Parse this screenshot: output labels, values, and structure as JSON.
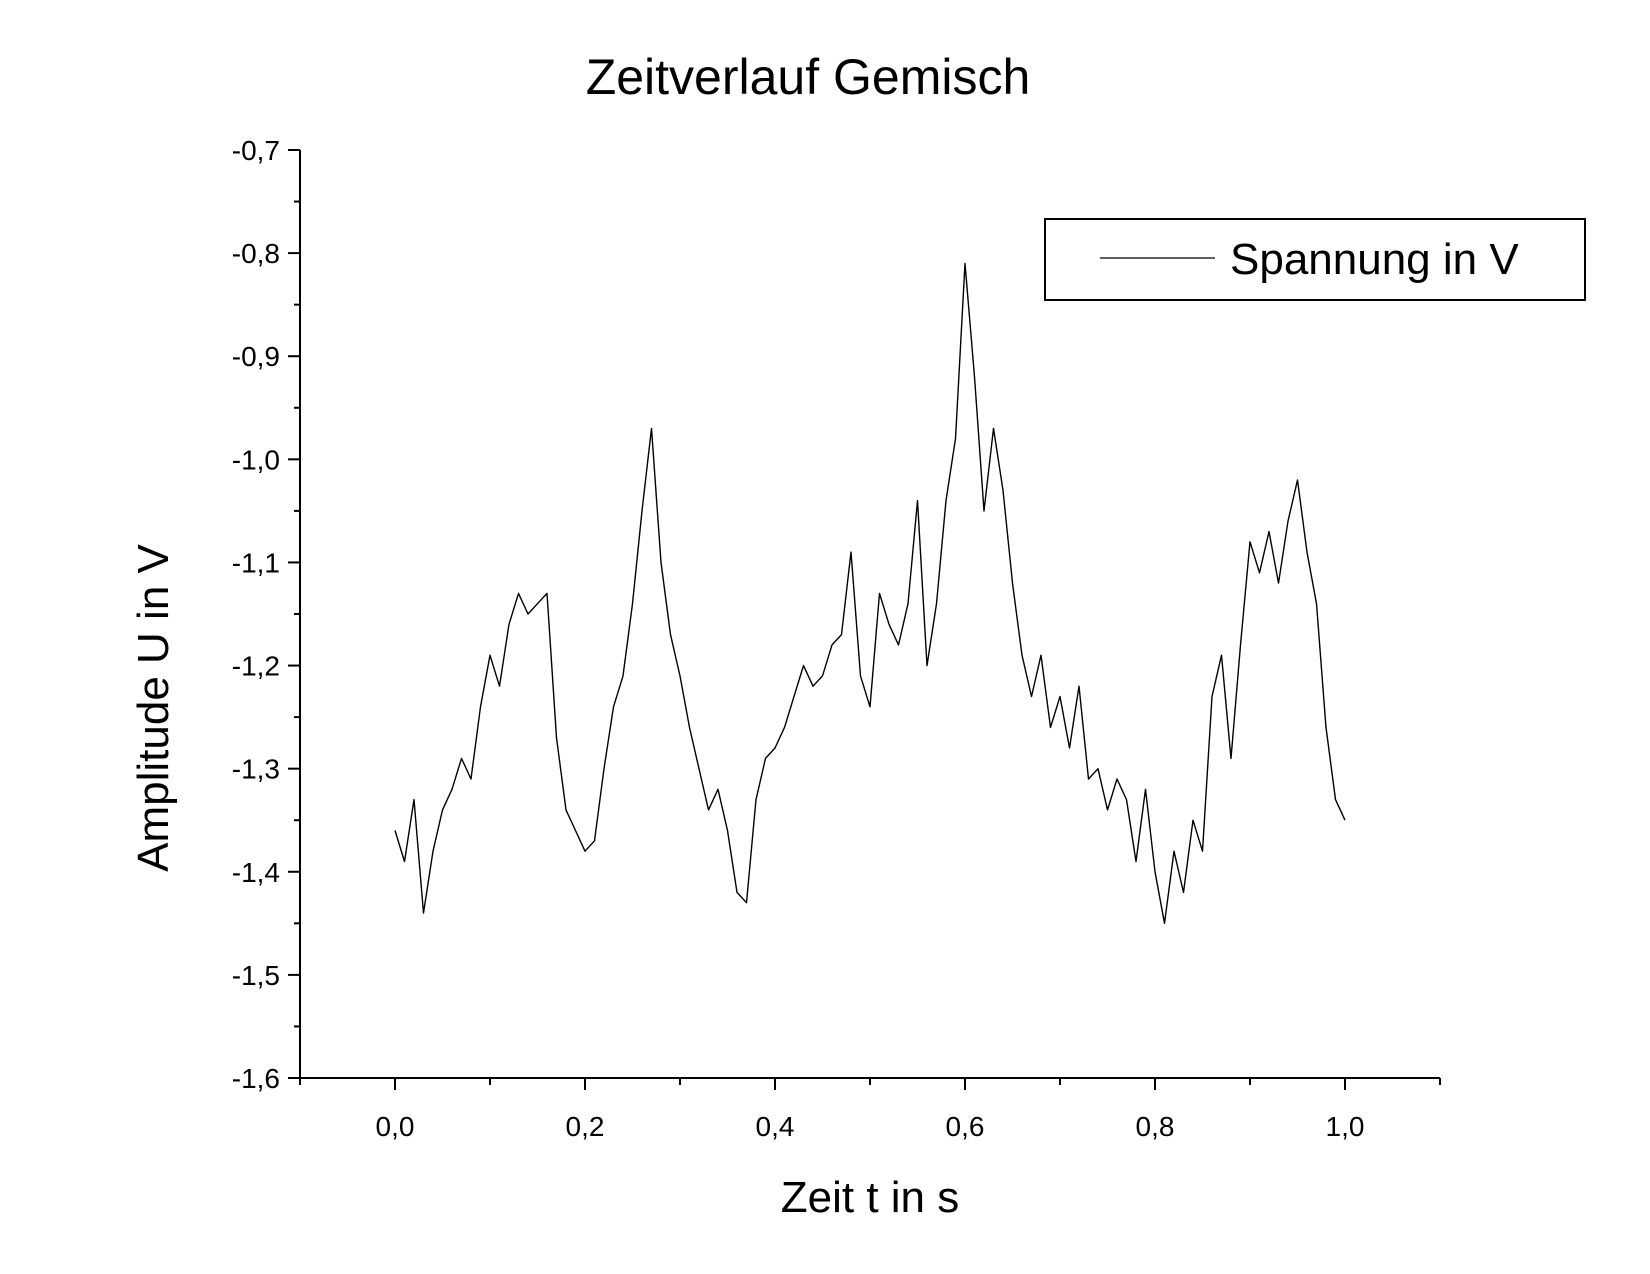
{
  "chart_data": {
    "type": "line",
    "title": "Zeitverlauf Gemisch",
    "xlabel": "Zeit t in s",
    "ylabel": "Amplitude U in V",
    "xlim": [
      -0.1,
      1.1
    ],
    "ylim": [
      -1.6,
      -0.7
    ],
    "x_ticks": [
      0.0,
      0.2,
      0.4,
      0.6,
      0.8,
      1.0
    ],
    "x_tick_labels": [
      "0,0",
      "0,2",
      "0,4",
      "0,6",
      "0,8",
      "1,0"
    ],
    "y_ticks": [
      -1.6,
      -1.5,
      -1.4,
      -1.3,
      -1.2,
      -1.1,
      -1.0,
      -0.9,
      -0.8,
      -0.7
    ],
    "y_tick_labels": [
      "-1,6",
      "-1,5",
      "-1,4",
      "-1,3",
      "-1,2",
      "-1,1",
      "-1,0",
      "-0,9",
      "-0,8",
      "-0,7"
    ],
    "grid": false,
    "legend_position": "top-right",
    "line_color": "#000000",
    "series": [
      {
        "name": "Spannung in V",
        "x": [
          0.0,
          0.01,
          0.02,
          0.03,
          0.04,
          0.05,
          0.06,
          0.07,
          0.08,
          0.09,
          0.1,
          0.11,
          0.12,
          0.13,
          0.14,
          0.15,
          0.16,
          0.17,
          0.18,
          0.19,
          0.2,
          0.21,
          0.22,
          0.23,
          0.24,
          0.25,
          0.26,
          0.27,
          0.28,
          0.29,
          0.3,
          0.31,
          0.32,
          0.33,
          0.34,
          0.35,
          0.36,
          0.37,
          0.38,
          0.39,
          0.4,
          0.41,
          0.42,
          0.43,
          0.44,
          0.45,
          0.46,
          0.47,
          0.48,
          0.49,
          0.5,
          0.51,
          0.52,
          0.53,
          0.54,
          0.55,
          0.56,
          0.57,
          0.58,
          0.59,
          0.6,
          0.61,
          0.62,
          0.63,
          0.64,
          0.65,
          0.66,
          0.67,
          0.68,
          0.69,
          0.7,
          0.71,
          0.72,
          0.73,
          0.74,
          0.75,
          0.76,
          0.77,
          0.78,
          0.79,
          0.8,
          0.81,
          0.82,
          0.83,
          0.84,
          0.85,
          0.86,
          0.87,
          0.88,
          0.89,
          0.9,
          0.91,
          0.92,
          0.93,
          0.94,
          0.95,
          0.96,
          0.97,
          0.98,
          0.99,
          1.0
        ],
        "values": [
          -1.36,
          -1.39,
          -1.33,
          -1.44,
          -1.38,
          -1.34,
          -1.32,
          -1.29,
          -1.31,
          -1.24,
          -1.19,
          -1.22,
          -1.16,
          -1.13,
          -1.15,
          -1.14,
          -1.13,
          -1.27,
          -1.34,
          -1.36,
          -1.38,
          -1.37,
          -1.3,
          -1.24,
          -1.21,
          -1.14,
          -1.05,
          -0.97,
          -1.1,
          -1.17,
          -1.21,
          -1.26,
          -1.3,
          -1.34,
          -1.32,
          -1.36,
          -1.42,
          -1.43,
          -1.33,
          -1.29,
          -1.28,
          -1.26,
          -1.23,
          -1.2,
          -1.22,
          -1.21,
          -1.18,
          -1.17,
          -1.09,
          -1.21,
          -1.24,
          -1.13,
          -1.16,
          -1.18,
          -1.14,
          -1.04,
          -1.2,
          -1.14,
          -1.04,
          -0.98,
          -0.81,
          -0.92,
          -1.05,
          -0.97,
          -1.03,
          -1.12,
          -1.19,
          -1.23,
          -1.19,
          -1.26,
          -1.23,
          -1.28,
          -1.22,
          -1.31,
          -1.3,
          -1.34,
          -1.31,
          -1.33,
          -1.39,
          -1.32,
          -1.4,
          -1.45,
          -1.38,
          -1.42,
          -1.35,
          -1.38,
          -1.23,
          -1.19,
          -1.29,
          -1.18,
          -1.08,
          -1.11,
          -1.07,
          -1.12,
          -1.06,
          -1.02,
          -1.09,
          -1.14,
          -1.26,
          -1.33,
          -1.35
        ]
      }
    ]
  }
}
